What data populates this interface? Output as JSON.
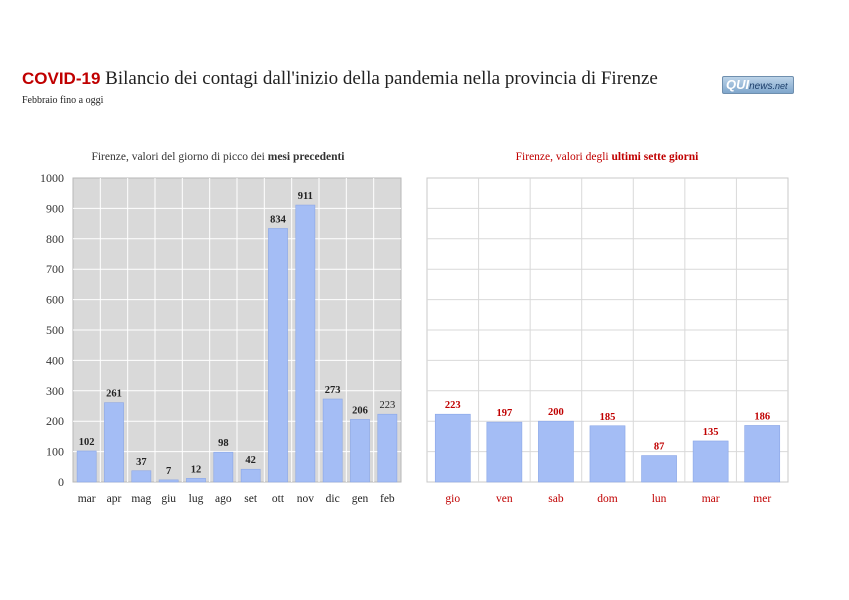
{
  "header": {
    "tag": "COVID-19",
    "title": " Bilancio dei contagi dall'inizio della pandemia nella provincia di Firenze",
    "subtitle": "Febbraio fino a oggi"
  },
  "logo": {
    "part1": "QUI",
    "part2": "news",
    "part3": ".net"
  },
  "colors": {
    "bar": "#a4bdf5",
    "bar_stroke": "#8aa6e6",
    "accent": "#c00000",
    "left_panel_bg": "#d9d9d9",
    "grid": "#ffffff"
  },
  "chart_data": [
    {
      "type": "bar",
      "title_prefix": "Firenze, valori del giorno di picco dei ",
      "title_emph": "mesi precedenti",
      "categories": [
        "mar",
        "apr",
        "mag",
        "giu",
        "lug",
        "ago",
        "set",
        "ott",
        "nov",
        "dic",
        "gen",
        "feb"
      ],
      "values": [
        102,
        261,
        37,
        7,
        12,
        98,
        42,
        834,
        911,
        273,
        206,
        223
      ],
      "value_labels": [
        "102",
        "261",
        "37",
        "7",
        "12",
        "98",
        "42",
        "834",
        "911",
        "273",
        "206",
        "223"
      ],
      "ylim": [
        0,
        1000
      ],
      "yticks": [
        "0",
        "100",
        "200",
        "300",
        "400",
        "500",
        "600",
        "700",
        "800",
        "900",
        "1000"
      ],
      "grid": true
    },
    {
      "type": "bar",
      "title_prefix": "Firenze, valori degli ",
      "title_emph": "ultimi sette giorni",
      "categories": [
        "gio",
        "ven",
        "sab",
        "dom",
        "lun",
        "mar",
        "mer"
      ],
      "values": [
        223,
        197,
        200,
        185,
        87,
        135,
        186
      ],
      "value_labels": [
        "223",
        "197",
        "200",
        "185",
        "87",
        "135",
        "186"
      ],
      "ylim": [
        0,
        1000
      ],
      "grid": true
    }
  ]
}
